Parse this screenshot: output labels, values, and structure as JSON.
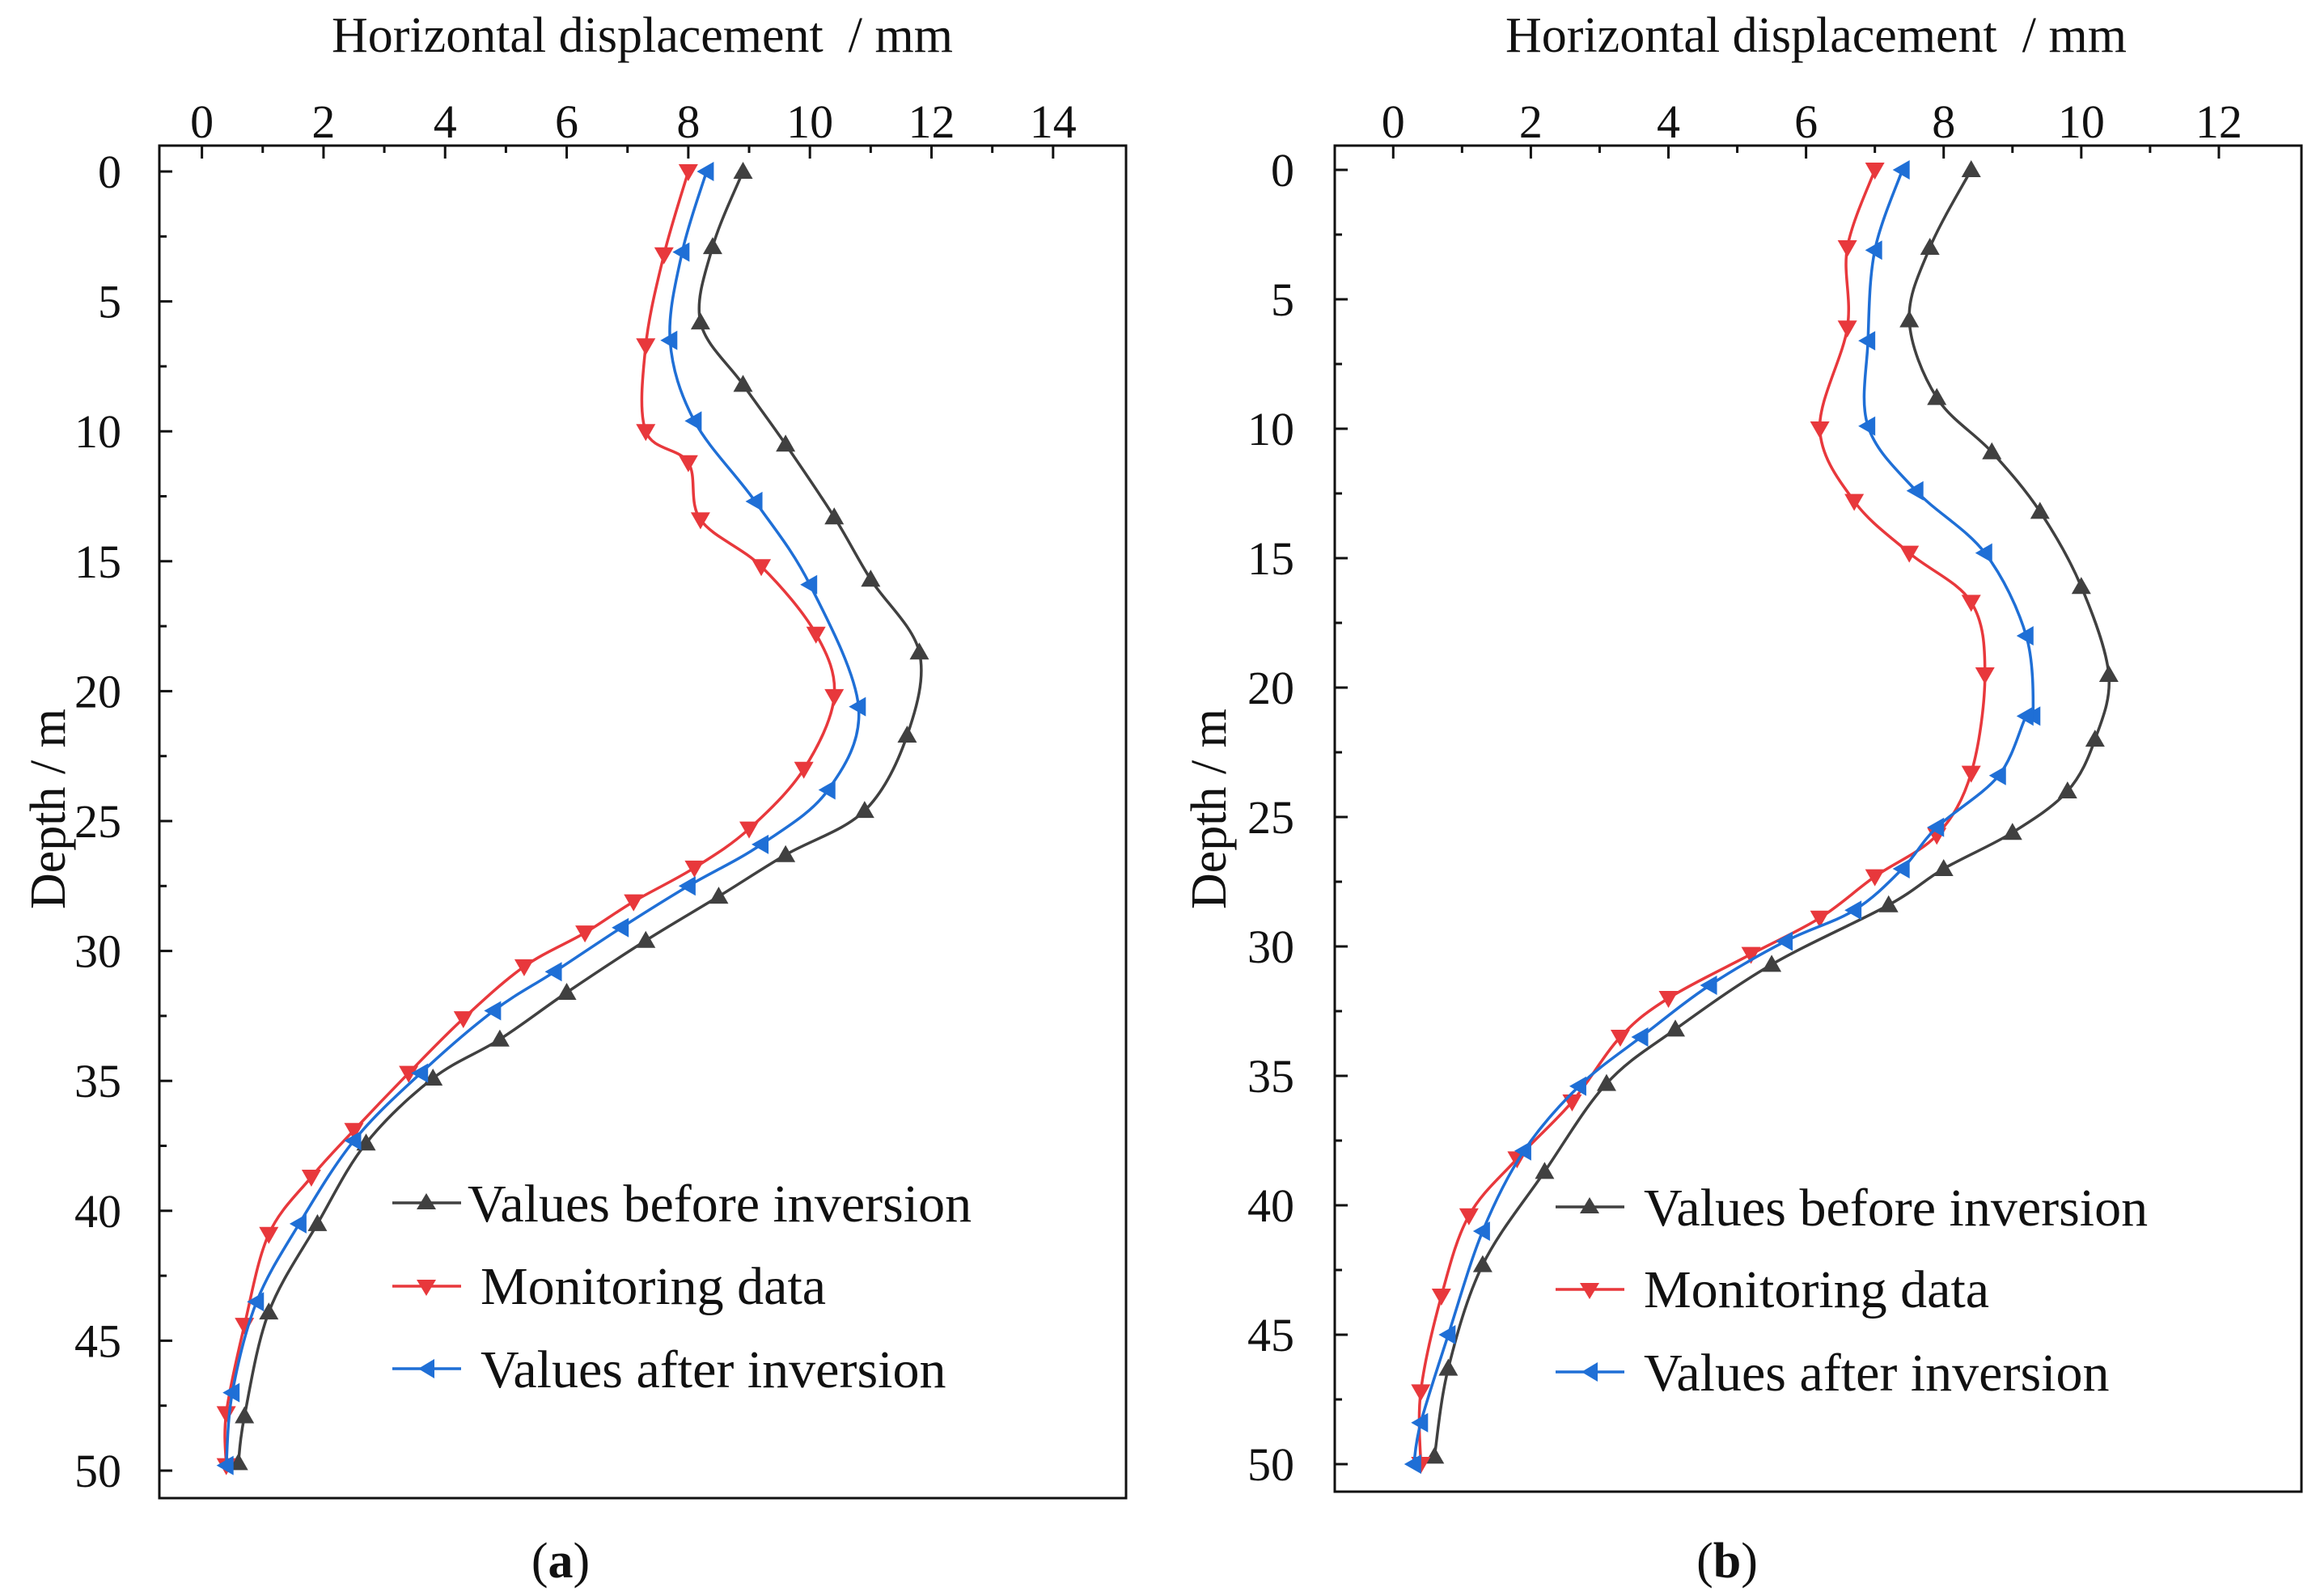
{
  "chart_data": [
    {
      "panel": "a",
      "type": "line",
      "caption_letter": "a",
      "xlabel": "Horizontal displacement  / mm",
      "ylabel": "Depth / m",
      "xlim": [
        -0.7,
        15.2
      ],
      "ylim": [
        0,
        51
      ],
      "y_inverted": true,
      "x_axis_position": "top",
      "xticks": [
        0,
        2,
        4,
        6,
        8,
        10,
        12,
        14
      ],
      "xtick_labels": [
        "0",
        "2",
        "4",
        "6",
        "8",
        "10",
        "12",
        "14"
      ],
      "yticks": [
        0,
        5,
        10,
        15,
        20,
        25,
        30,
        35,
        40,
        45,
        50
      ],
      "ytick_labels": [
        "0",
        "5",
        "10",
        "15",
        "20",
        "25",
        "30",
        "35",
        "40",
        "45",
        "50"
      ],
      "legend_position": "bottom-right",
      "series": [
        {
          "name": "Values before inversion",
          "color": "#404040",
          "marker": "triangle-up",
          "x": [
            8.9,
            8.4,
            8.2,
            8.9,
            9.6,
            10.4,
            11.0,
            11.8,
            11.6,
            10.9,
            9.6,
            8.5,
            7.3,
            6.0,
            4.9,
            3.8,
            2.7,
            1.9,
            1.1,
            0.7,
            0.6
          ],
          "y": [
            0,
            2.9,
            5.8,
            8.2,
            10.5,
            13.3,
            15.7,
            18.5,
            21.7,
            24.6,
            26.3,
            27.9,
            29.6,
            31.6,
            33.4,
            34.9,
            37.4,
            40.5,
            43.9,
            47.9,
            49.7
          ]
        },
        {
          "name": "Monitoring data",
          "color": "#e8383c",
          "marker": "triangle-down",
          "x": [
            8.0,
            7.6,
            7.3,
            7.3,
            8.0,
            8.2,
            9.2,
            10.1,
            10.4,
            9.9,
            9.0,
            8.1,
            7.1,
            6.3,
            5.3,
            4.3,
            3.4,
            2.5,
            1.8,
            1.1,
            0.7,
            0.4,
            0.4
          ],
          "y": [
            0,
            3.2,
            6.7,
            10.0,
            11.2,
            13.4,
            15.2,
            17.8,
            20.2,
            23.0,
            25.3,
            26.8,
            28.1,
            29.3,
            30.6,
            32.6,
            34.7,
            36.9,
            38.7,
            40.9,
            44.4,
            47.8,
            49.8
          ]
        },
        {
          "name": "Values after inversion",
          "color": "#1f6fd6",
          "marker": "triangle-left",
          "x": [
            8.3,
            7.9,
            7.7,
            8.1,
            9.1,
            10.0,
            10.8,
            10.3,
            9.2,
            8.0,
            6.9,
            5.8,
            4.8,
            3.6,
            2.5,
            1.6,
            0.9,
            0.5,
            0.4
          ],
          "y": [
            0,
            3.1,
            6.5,
            9.6,
            12.7,
            15.9,
            20.6,
            23.8,
            25.9,
            27.5,
            29.1,
            30.8,
            32.3,
            34.7,
            37.3,
            40.5,
            43.5,
            47.0,
            49.8
          ]
        }
      ]
    },
    {
      "panel": "b",
      "type": "line",
      "caption_letter": "b",
      "xlabel": "Horizontal displacement  / mm",
      "ylabel": "Depth / m",
      "xlim": [
        -0.85,
        13.2
      ],
      "ylim": [
        0,
        51
      ],
      "y_inverted": true,
      "x_axis_position": "top",
      "xticks": [
        0,
        2,
        4,
        6,
        8,
        10,
        12
      ],
      "xtick_labels": [
        "0",
        "2",
        "4",
        "6",
        "8",
        "10",
        "12"
      ],
      "yticks": [
        0,
        5,
        10,
        15,
        20,
        25,
        30,
        35,
        40,
        45,
        50
      ],
      "ytick_labels": [
        "0",
        "5",
        "10",
        "15",
        "20",
        "25",
        "30",
        "35",
        "40",
        "45",
        "50"
      ],
      "legend_position": "bottom-right",
      "series": [
        {
          "name": "Values before inversion",
          "color": "#404040",
          "marker": "triangle-up",
          "x": [
            8.4,
            7.8,
            7.5,
            7.9,
            8.7,
            9.4,
            10.0,
            10.4,
            10.2,
            9.8,
            9.0,
            8.0,
            7.2,
            5.5,
            4.1,
            3.1,
            2.2,
            1.3,
            0.8,
            0.6
          ],
          "y": [
            0,
            3.0,
            5.8,
            8.8,
            10.9,
            13.2,
            16.1,
            19.5,
            22.0,
            24.0,
            25.6,
            27.0,
            28.4,
            30.7,
            33.2,
            35.3,
            38.7,
            42.3,
            46.3,
            49.7
          ]
        },
        {
          "name": "Monitoring data",
          "color": "#e8383c",
          "marker": "triangle-down",
          "x": [
            7.0,
            6.6,
            6.6,
            6.2,
            6.7,
            7.5,
            8.4,
            8.6,
            8.4,
            7.9,
            7.0,
            6.2,
            5.2,
            4.0,
            3.3,
            2.6,
            1.8,
            1.1,
            0.7,
            0.4,
            0.4
          ],
          "y": [
            0,
            3.0,
            6.1,
            10.0,
            12.8,
            14.8,
            16.7,
            19.5,
            23.3,
            25.7,
            27.3,
            28.9,
            30.3,
            32.0,
            33.5,
            36.0,
            38.2,
            40.4,
            43.5,
            47.2,
            50.0
          ]
        },
        {
          "name": "Values after inversion",
          "color": "#1f6fd6",
          "marker": "triangle-left",
          "x": [
            7.4,
            7.0,
            6.9,
            6.9,
            7.6,
            8.6,
            9.2,
            9.3,
            9.2,
            8.8,
            7.9,
            7.4,
            6.7,
            5.7,
            4.6,
            3.6,
            2.7,
            1.9,
            1.3,
            0.8,
            0.4,
            0.3
          ],
          "y": [
            0,
            3.1,
            6.6,
            9.9,
            12.4,
            14.8,
            18.0,
            21.1,
            21.1,
            23.4,
            25.4,
            27.0,
            28.6,
            29.8,
            31.5,
            33.5,
            35.4,
            37.9,
            41.0,
            45.0,
            48.4,
            50.0
          ]
        }
      ]
    }
  ]
}
